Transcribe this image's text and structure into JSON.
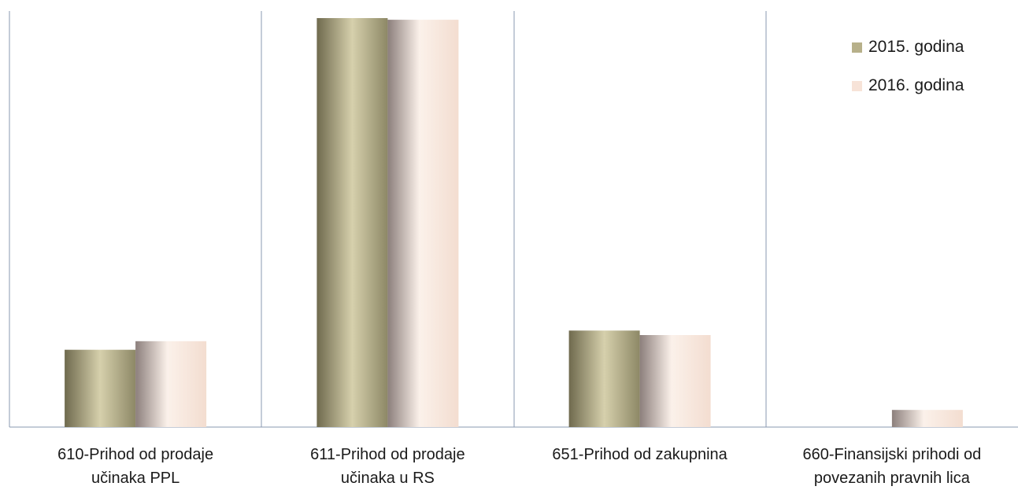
{
  "chart_data": {
    "type": "bar",
    "categories": [
      "610-Prihod od prodaje\nučinaka PPL",
      "611-Prihod od prodaje\nučinaka u RS",
      "651-Prihod od zakupnina",
      "660-Finansijski prihodi od\npovezanih pravnih lica"
    ],
    "series": [
      {
        "name": "2015. godina",
        "values": [
          18.9,
          100,
          23.6,
          0
        ],
        "color": "#b7b08a"
      },
      {
        "name": "2016. godina",
        "values": [
          21.0,
          99.6,
          22.5,
          4.2
        ],
        "color": "#f4e2d6"
      }
    ],
    "ylim": [
      0,
      100
    ],
    "grid": false,
    "legend": "top-right"
  }
}
